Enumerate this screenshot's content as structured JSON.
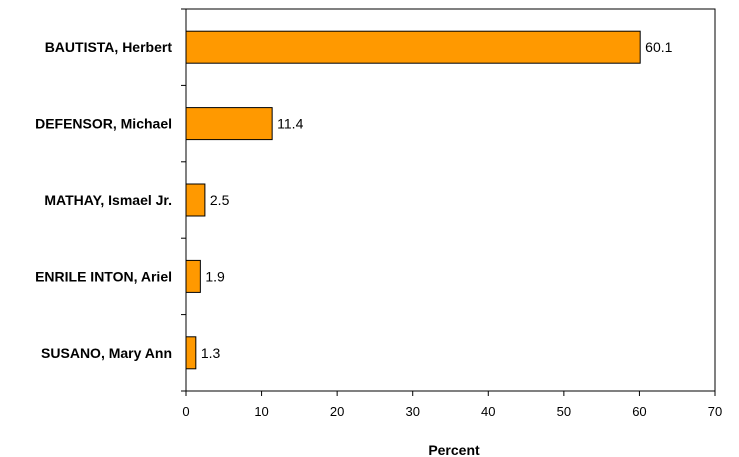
{
  "chart_data": {
    "type": "bar",
    "orientation": "horizontal",
    "categories": [
      "BAUTISTA, Herbert",
      "DEFENSOR, Michael",
      "MATHAY, Ismael Jr.",
      "ENRILE INTON, Ariel",
      "SUSANO, Mary Ann"
    ],
    "values": [
      60.1,
      11.4,
      2.5,
      1.9,
      1.3
    ],
    "data_labels": [
      "60.1",
      "11.4",
      "2.5",
      "1.9",
      "1.3"
    ],
    "xlabel": "Percent",
    "ylabel": "",
    "xlim": [
      0,
      70
    ],
    "xticks": [
      0,
      10,
      20,
      30,
      40,
      50,
      60,
      70
    ],
    "xtick_labels": [
      "0",
      "10",
      "20",
      "30",
      "40",
      "50",
      "60",
      "70"
    ],
    "bar_color": "#FF9900",
    "bar_edge_color": "#000000",
    "grid": false
  }
}
